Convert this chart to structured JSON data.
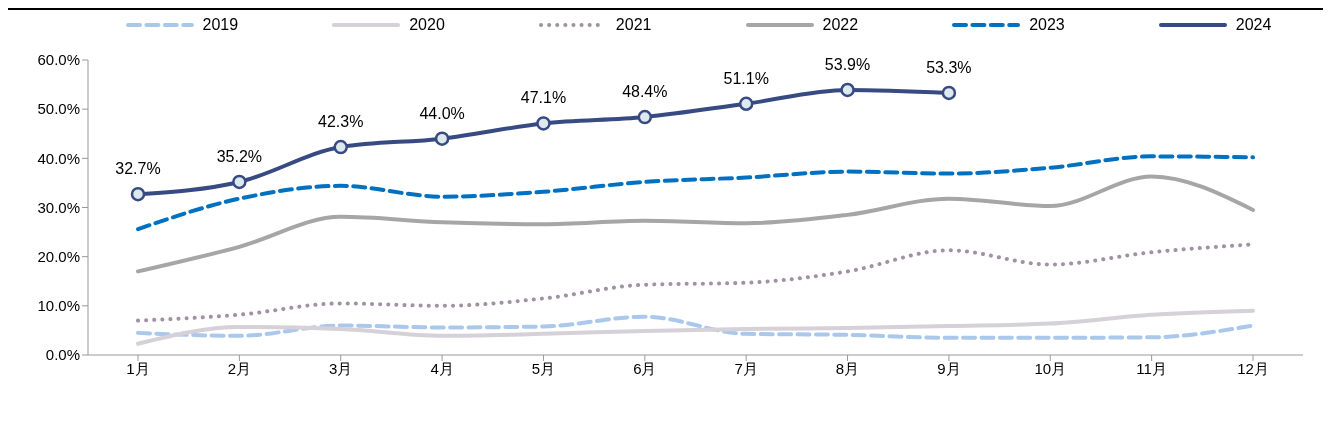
{
  "chart_data": {
    "type": "line",
    "categories": [
      "1月",
      "2月",
      "3月",
      "4月",
      "5月",
      "6月",
      "7月",
      "8月",
      "9月",
      "10月",
      "11月",
      "12月"
    ],
    "series": [
      {
        "name": "2019",
        "color": "#a9c8ec",
        "line_style": "dashed",
        "values": [
          4.5,
          3.9,
          6.0,
          5.6,
          5.8,
          7.8,
          4.3,
          4.1,
          3.5,
          3.5,
          3.6,
          6.0
        ]
      },
      {
        "name": "2020",
        "color": "#d6d0d8",
        "line_style": "solid",
        "values": [
          2.3,
          5.7,
          5.3,
          3.9,
          4.3,
          4.9,
          5.3,
          5.5,
          5.9,
          6.4,
          8.2,
          9.0
        ]
      },
      {
        "name": "2021",
        "color": "#a091a3",
        "line_style": "dotted",
        "values": [
          7.0,
          8.2,
          10.5,
          10.0,
          11.5,
          14.3,
          14.7,
          17.0,
          21.3,
          18.4,
          20.9,
          22.5
        ]
      },
      {
        "name": "2022",
        "color": "#a6a6a6",
        "line_style": "solid",
        "values": [
          17.0,
          22.0,
          28.1,
          27.0,
          26.6,
          27.3,
          26.8,
          28.5,
          31.8,
          30.3,
          36.3,
          29.5
        ]
      },
      {
        "name": "2023",
        "color": "#0070c0",
        "line_style": "dashed",
        "values": [
          25.6,
          31.8,
          34.4,
          32.2,
          33.2,
          35.2,
          36.1,
          37.3,
          36.9,
          38.1,
          40.4,
          40.2
        ]
      },
      {
        "name": "2024",
        "color": "#374a82",
        "line_style": "solid",
        "marker": "circle",
        "values": [
          32.7,
          35.2,
          42.3,
          44.0,
          47.1,
          48.4,
          51.1,
          53.9,
          53.3,
          null,
          null,
          null
        ],
        "value_labels": [
          "32.7%",
          "35.2%",
          "42.3%",
          "44.0%",
          "47.1%",
          "48.4%",
          "51.1%",
          "53.9%",
          "53.3%",
          null,
          null,
          null
        ]
      }
    ],
    "ylim": [
      0,
      60
    ],
    "yticks": [
      {
        "value": 0,
        "label": "0.0%"
      },
      {
        "value": 10,
        "label": "10.0%"
      },
      {
        "value": 20,
        "label": "20.0%"
      },
      {
        "value": 30,
        "label": "30.0%"
      },
      {
        "value": 40,
        "label": "40.0%"
      },
      {
        "value": 50,
        "label": "50.0%"
      },
      {
        "value": 60,
        "label": "60.0%"
      }
    ],
    "grid": false,
    "legend": "top"
  }
}
